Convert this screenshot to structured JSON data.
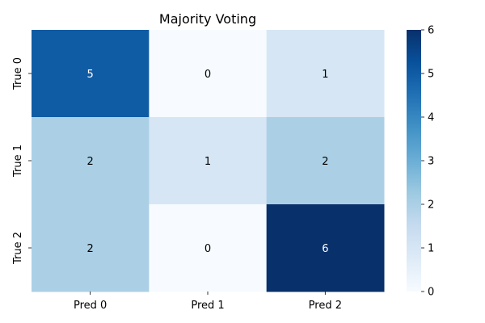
{
  "chart_data": {
    "type": "heatmap",
    "title": "Majority Voting",
    "xlabel": "",
    "ylabel": "",
    "x_categories": [
      "Pred 0",
      "Pred 1",
      "Pred 2"
    ],
    "y_categories": [
      "True 0",
      "True 1",
      "True 2"
    ],
    "values": [
      [
        5,
        0,
        1
      ],
      [
        2,
        1,
        2
      ],
      [
        2,
        0,
        6
      ]
    ],
    "colormap": "Blues",
    "color_range": [
      0,
      6
    ],
    "colorbar_ticks": [
      "0",
      "1",
      "2",
      "3",
      "4",
      "5",
      "6"
    ],
    "colors": {
      "low": "#f7fbff",
      "high": "#08306b",
      "text_dark": "#000000",
      "text_light": "#ffffff"
    },
    "grid": false,
    "legend": "colorbar-right"
  }
}
